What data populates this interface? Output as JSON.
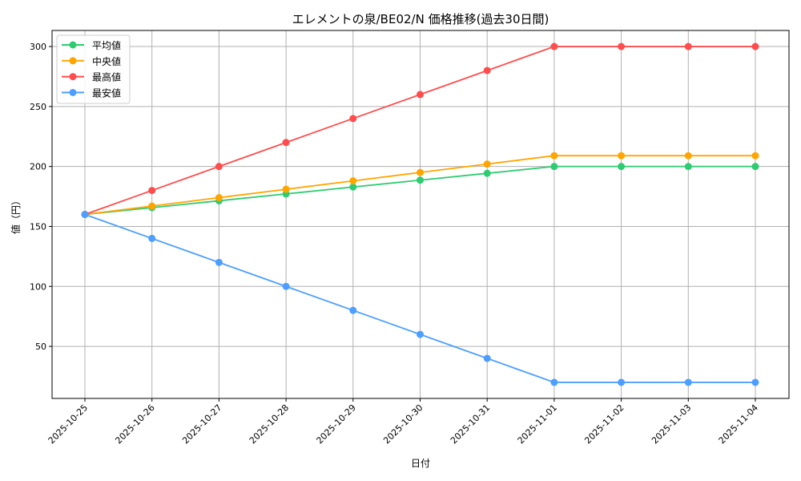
{
  "chart_data": {
    "type": "line",
    "title": "エレメントの泉/BE02/N 価格推移(過去30日間)",
    "xlabel": "日付",
    "ylabel": "値（円）",
    "categories": [
      "2025-10-25",
      "2025-10-26",
      "2025-10-27",
      "2025-10-28",
      "2025-10-29",
      "2025-10-30",
      "2025-10-31",
      "2025-11-01",
      "2025-11-02",
      "2025-11-03",
      "2025-11-04"
    ],
    "ylim": [
      6.6,
      313.4
    ],
    "yticks": [
      50,
      100,
      150,
      200,
      250,
      300
    ],
    "grid": true,
    "legend_position": "top-left",
    "series": [
      {
        "name": "平均値",
        "color": "#2ecc71",
        "values": [
          160,
          165.7,
          171.4,
          177.1,
          182.9,
          188.6,
          194.3,
          200,
          200,
          200,
          200
        ]
      },
      {
        "name": "中央値",
        "color": "#ffa500",
        "values": [
          160,
          167,
          174,
          181,
          188,
          195,
          202,
          209,
          209,
          209,
          209
        ]
      },
      {
        "name": "最高値",
        "color": "#ff4d4d",
        "values": [
          160,
          180,
          200,
          220,
          240,
          260,
          280,
          300,
          300,
          300,
          300
        ]
      },
      {
        "name": "最安値",
        "color": "#4d9fff",
        "values": [
          160,
          140,
          120,
          100,
          80,
          60,
          40,
          20,
          20,
          20,
          20
        ]
      }
    ]
  }
}
